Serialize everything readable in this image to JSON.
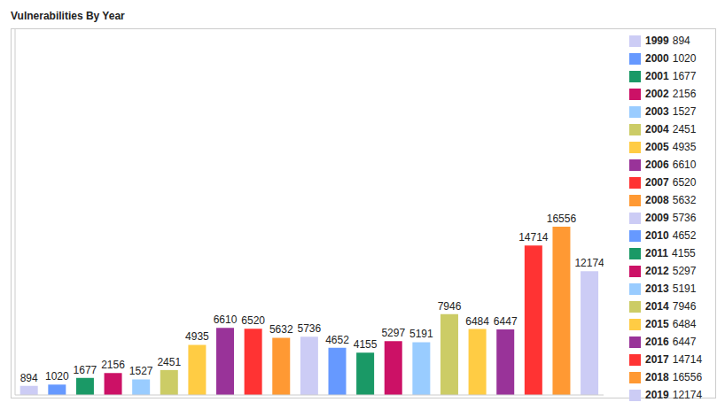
{
  "chart_data": {
    "type": "bar",
    "title": "Vulnerabilities By Year",
    "categories": [
      "1999",
      "2000",
      "2001",
      "2002",
      "2003",
      "2004",
      "2005",
      "2006",
      "2007",
      "2008",
      "2009",
      "2010",
      "2011",
      "2012",
      "2013",
      "2014",
      "2015",
      "2016",
      "2017",
      "2018",
      "2019"
    ],
    "values": [
      894,
      1020,
      1677,
      2156,
      1527,
      2451,
      4935,
      6610,
      6520,
      5632,
      5736,
      4652,
      4155,
      5297,
      5191,
      7946,
      6484,
      6447,
      14714,
      16556,
      12174
    ],
    "colors": [
      "#ccccf5",
      "#6699ff",
      "#1a9966",
      "#cc1166",
      "#99ccff",
      "#cccc66",
      "#ffcc44",
      "#993399",
      "#ff3333",
      "#ff9933",
      "#ccccf5",
      "#6699ff",
      "#1a9966",
      "#cc1166",
      "#99ccff",
      "#cccc66",
      "#ffcc44",
      "#993399",
      "#ff3333",
      "#ff9933",
      "#ccccf5"
    ],
    "ylim": [
      0,
      36000
    ],
    "tick_labels": false,
    "data_labels": true,
    "legend": "right"
  }
}
